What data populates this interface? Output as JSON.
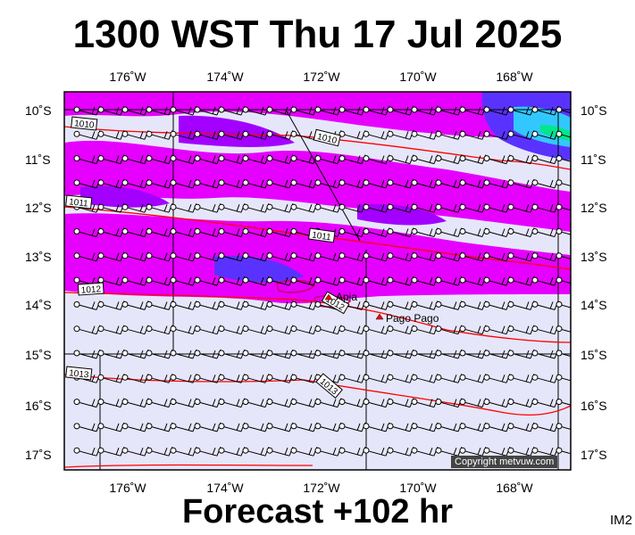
{
  "title": "1300 WST Thu 17 Jul 2025",
  "footer": "Forecast +102 hr",
  "corner_label": "IM2",
  "copyright": "Copyright metvuw.com",
  "colors": {
    "background": "#e6e6fa",
    "rain_light": "#e600ff",
    "rain_medium": "#a300ff",
    "rain_heavy": "#5a32ff",
    "rain_peak": "#32c8ff",
    "isobar": "#ff0000",
    "wind_barb": "#000000"
  },
  "lon_labels": [
    "176˚W",
    "174˚W",
    "172˚W",
    "170˚W",
    "168˚W"
  ],
  "lat_labels": [
    "10˚S",
    "11˚S",
    "12˚S",
    "13˚S",
    "14˚S",
    "15˚S",
    "16˚S",
    "17˚S"
  ],
  "isobars": [
    {
      "label": "1010"
    },
    {
      "label": "1010"
    },
    {
      "label": "1011"
    },
    {
      "label": "1011"
    },
    {
      "label": "1012"
    },
    {
      "label": "1012"
    },
    {
      "label": "1013"
    },
    {
      "label": "1013"
    }
  ],
  "places": [
    {
      "name": "Apia"
    },
    {
      "name": "Pago Pago"
    }
  ]
}
